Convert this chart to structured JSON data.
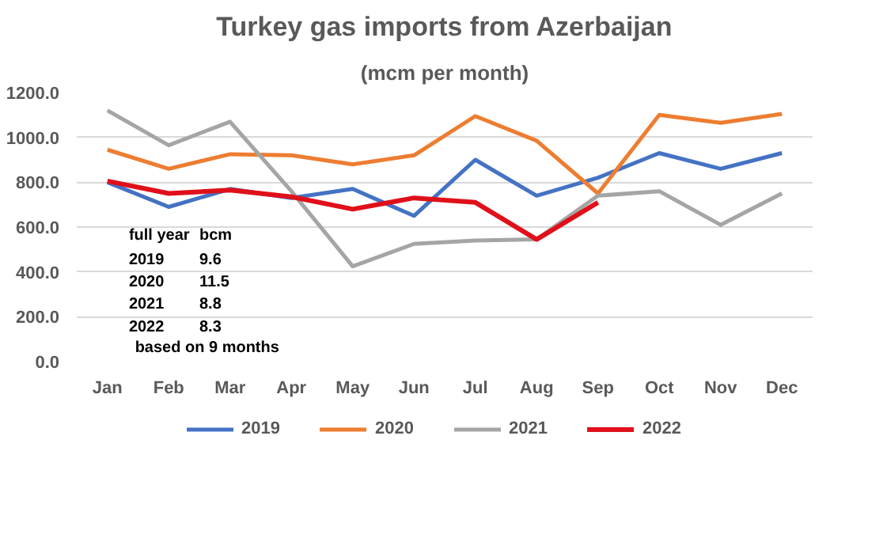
{
  "chart_data": {
    "type": "line",
    "title": "Turkey gas imports from Azerbaijan",
    "subtitle": "(mcm per month)",
    "categories": [
      "Jan",
      "Feb",
      "Mar",
      "Apr",
      "May",
      "Jun",
      "Jul",
      "Aug",
      "Sep",
      "Oct",
      "Nov",
      "Dec"
    ],
    "series": [
      {
        "name": "2019",
        "color": "#4472c4",
        "values": [
          800,
          690,
          770,
          730,
          770,
          650,
          900,
          740,
          820,
          930,
          860,
          930
        ]
      },
      {
        "name": "2020",
        "color": "#ed7d31",
        "values": [
          945,
          860,
          925,
          920,
          880,
          920,
          1095,
          985,
          750,
          1100,
          1065,
          1105
        ]
      },
      {
        "name": "2021",
        "color": "#a5a5a5",
        "values": [
          1120,
          965,
          1070,
          760,
          425,
          525,
          540,
          545,
          740,
          760,
          610,
          750
        ]
      },
      {
        "name": "2022",
        "color": "#e0101a",
        "values": [
          805,
          750,
          765,
          735,
          680,
          730,
          710,
          545,
          710,
          null,
          null,
          null
        ]
      }
    ],
    "ylim": [
      0,
      1200
    ],
    "yticks": [
      {
        "value": 0,
        "label": "0.0"
      },
      {
        "value": 200,
        "label": "200.0"
      },
      {
        "value": 400,
        "label": "400.0"
      },
      {
        "value": 600,
        "label": "600.0"
      },
      {
        "value": 800,
        "label": "800.0"
      },
      {
        "value": 1000,
        "label": "1000.0"
      },
      {
        "value": 1200,
        "label": "1200.0"
      }
    ],
    "grid": "y",
    "legend": "bottom",
    "marker": "none",
    "line_style": "solid",
    "annotations": [
      "full year",
      "bcm",
      "2019",
      "9.6",
      "2020",
      "11.5",
      "2021",
      "8.8",
      "2022",
      "8.3",
      "based on 9 months"
    ]
  }
}
